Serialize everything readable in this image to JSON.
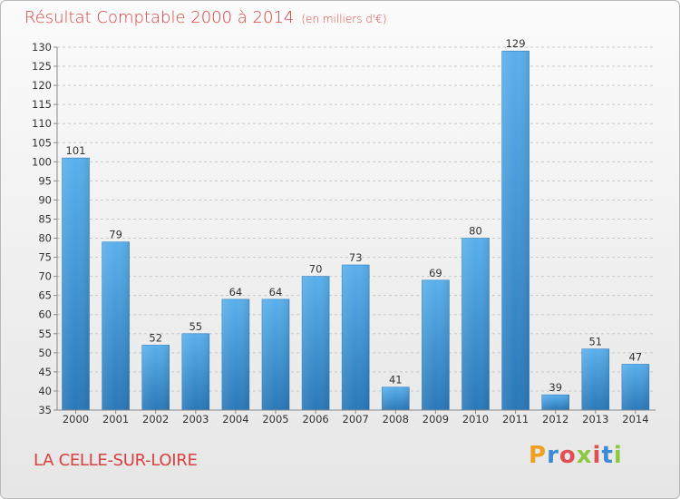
{
  "title": "Résultat Comptable 2000 à 2014",
  "unit": "(en milliers d'€)",
  "commune": "LA CELLE-SUR-LOIRE",
  "logo": {
    "text": "Proxiti",
    "colors": [
      "#f0a020",
      "#3a8ad6",
      "#e05050",
      "#8cc840",
      "#e05050",
      "#3a8ad6",
      "#8cc840"
    ]
  },
  "colors": {
    "title": "#d9403e",
    "bar_top": "#5ab0ec",
    "bar_bottom": "#2a78b8"
  },
  "chart_data": {
    "type": "bar",
    "categories": [
      "2000",
      "2001",
      "2002",
      "2003",
      "2004",
      "2005",
      "2006",
      "2007",
      "2008",
      "2009",
      "2010",
      "2011",
      "2012",
      "2013",
      "2014"
    ],
    "values": [
      101,
      79,
      52,
      55,
      64,
      64,
      70,
      73,
      41,
      69,
      80,
      129,
      39,
      51,
      47
    ],
    "ylim": [
      35,
      130
    ],
    "yticks": [
      35,
      40,
      45,
      50,
      55,
      60,
      65,
      70,
      75,
      80,
      85,
      90,
      95,
      100,
      105,
      110,
      115,
      120,
      125,
      130
    ],
    "grid": "horizontal dashed",
    "data_labels": true
  }
}
